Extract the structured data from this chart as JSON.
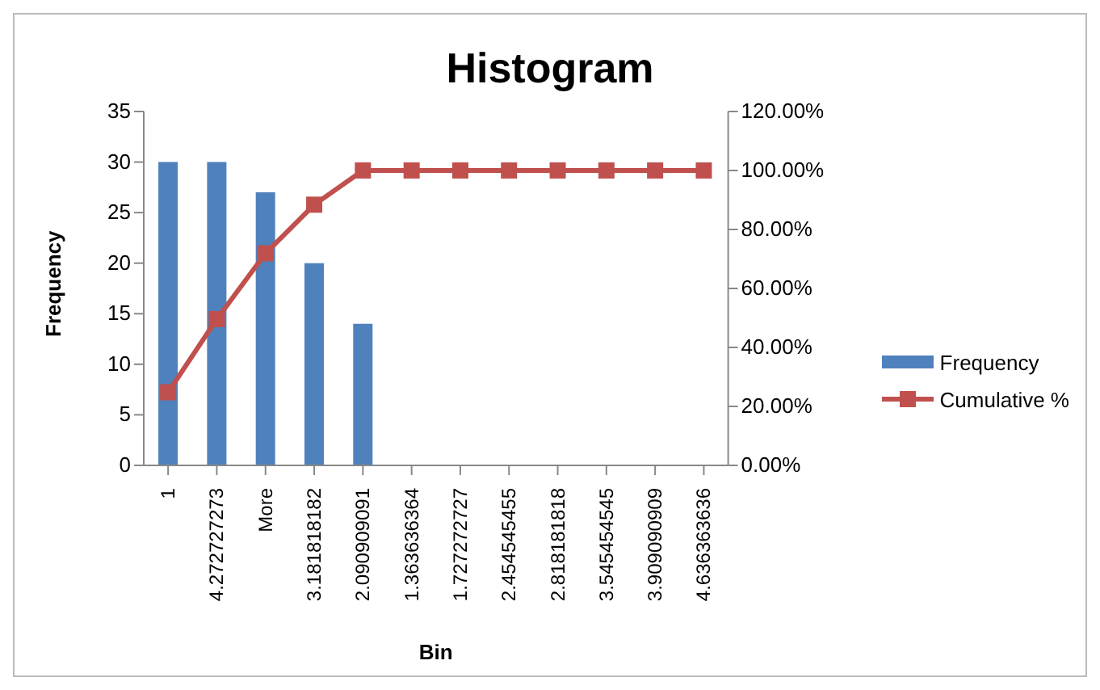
{
  "chart_data": {
    "type": "bar",
    "title": "Histogram",
    "xlabel": "Bin",
    "ylabel": "Frequency",
    "categories": [
      "1",
      "4.272727273",
      "More",
      "3.181818182",
      "2.090909091",
      "1.363636364",
      "1.727272727",
      "2.454545455",
      "2.818181818",
      "3.545454545",
      "3.909090909",
      "4.636363636"
    ],
    "series": [
      {
        "name": "Frequency",
        "color": "#4f81bd",
        "values": [
          30,
          30,
          27,
          20,
          14,
          0,
          0,
          0,
          0,
          0,
          0,
          0
        ]
      },
      {
        "name": "Cumulative %",
        "type": "line",
        "axis": "y2",
        "color": "#c0504d",
        "values": [
          24.8,
          49.6,
          71.9,
          88.4,
          100,
          100,
          100,
          100,
          100,
          100,
          100,
          100
        ]
      }
    ],
    "ylim": [
      0,
      35
    ],
    "yticks": [
      0,
      5,
      10,
      15,
      20,
      25,
      30,
      35
    ],
    "y2lim": [
      0,
      120
    ],
    "y2ticks": [
      {
        "value": 0,
        "label": "0.00%"
      },
      {
        "value": 20,
        "label": "20.00%"
      },
      {
        "value": 40,
        "label": "40.00%"
      },
      {
        "value": 60,
        "label": "60.00%"
      },
      {
        "value": 80,
        "label": "80.00%"
      },
      {
        "value": 100,
        "label": "100.00%"
      },
      {
        "value": 120,
        "label": "120.00%"
      }
    ],
    "marker": "square",
    "line_style": "solid",
    "grid": false,
    "legend": "right"
  }
}
